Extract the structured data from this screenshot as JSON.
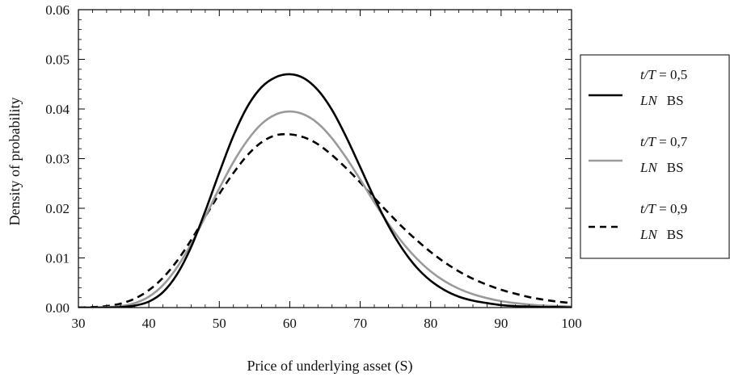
{
  "chart_data": {
    "type": "line",
    "xlabel": "Price of underlying asset (S)",
    "ylabel": "Density of probability",
    "xlim": [
      30,
      100
    ],
    "ylim": [
      0,
      0.06
    ],
    "x_ticks": [
      "30",
      "40",
      "50",
      "60",
      "70",
      "80",
      "90",
      "100"
    ],
    "y_ticks": [
      "0.00",
      "0.01",
      "0.02",
      "0.03",
      "0.04",
      "0.05",
      "0.06"
    ],
    "grid": false,
    "legend_position": "right",
    "x": [
      30,
      32,
      34,
      36,
      38,
      40,
      42,
      44,
      46,
      48,
      50,
      52,
      54,
      56,
      58,
      60,
      62,
      64,
      66,
      68,
      70,
      72,
      74,
      76,
      78,
      80,
      82,
      84,
      86,
      88,
      90,
      92,
      94,
      96,
      98,
      100
    ],
    "series": [
      {
        "name": "t/T = 0,5",
        "legend_lines": [
          "t/T = 0,5",
          "LN BS"
        ],
        "style": "solid",
        "color": "#000000",
        "values": [
          0.0,
          0.0,
          0.0,
          0.0001,
          0.0004,
          0.0012,
          0.0031,
          0.0067,
          0.0122,
          0.0194,
          0.0272,
          0.0346,
          0.0405,
          0.0444,
          0.0464,
          0.047,
          0.0462,
          0.0438,
          0.0398,
          0.0344,
          0.0283,
          0.0221,
          0.0165,
          0.0118,
          0.0081,
          0.0054,
          0.0035,
          0.0022,
          0.0014,
          0.0009,
          0.0005,
          0.0003,
          0.0002,
          0.0001,
          0.0001,
          0.0
        ]
      },
      {
        "name": "t/T = 0,7",
        "legend_lines": [
          "t/T = 0,7",
          "LN BS"
        ],
        "style": "solid",
        "color": "#9a9a9a",
        "values": [
          0.0,
          0.0,
          0.0001,
          0.0003,
          0.0009,
          0.0022,
          0.0045,
          0.0081,
          0.0128,
          0.0183,
          0.024,
          0.0293,
          0.0337,
          0.037,
          0.0389,
          0.0395,
          0.0389,
          0.0371,
          0.0341,
          0.0302,
          0.0258,
          0.0212,
          0.0169,
          0.0131,
          0.0099,
          0.0073,
          0.0053,
          0.0038,
          0.0027,
          0.0019,
          0.0013,
          0.0009,
          0.0006,
          0.0004,
          0.0003,
          0.0002
        ]
      },
      {
        "name": "t/T = 0,9",
        "legend_lines": [
          "t/T = 0,9",
          "LN BS"
        ],
        "style": "dashed",
        "color": "#000000",
        "values": [
          0.0,
          0.0001,
          0.0003,
          0.0008,
          0.0018,
          0.0035,
          0.006,
          0.0094,
          0.0136,
          0.0183,
          0.0229,
          0.0271,
          0.0307,
          0.0333,
          0.0347,
          0.0349,
          0.0343,
          0.0329,
          0.0307,
          0.0281,
          0.0252,
          0.0221,
          0.0191,
          0.0162,
          0.0136,
          0.0112,
          0.0091,
          0.0073,
          0.0058,
          0.0046,
          0.0036,
          0.0028,
          0.0021,
          0.0016,
          0.0012,
          0.0009
        ]
      }
    ]
  }
}
